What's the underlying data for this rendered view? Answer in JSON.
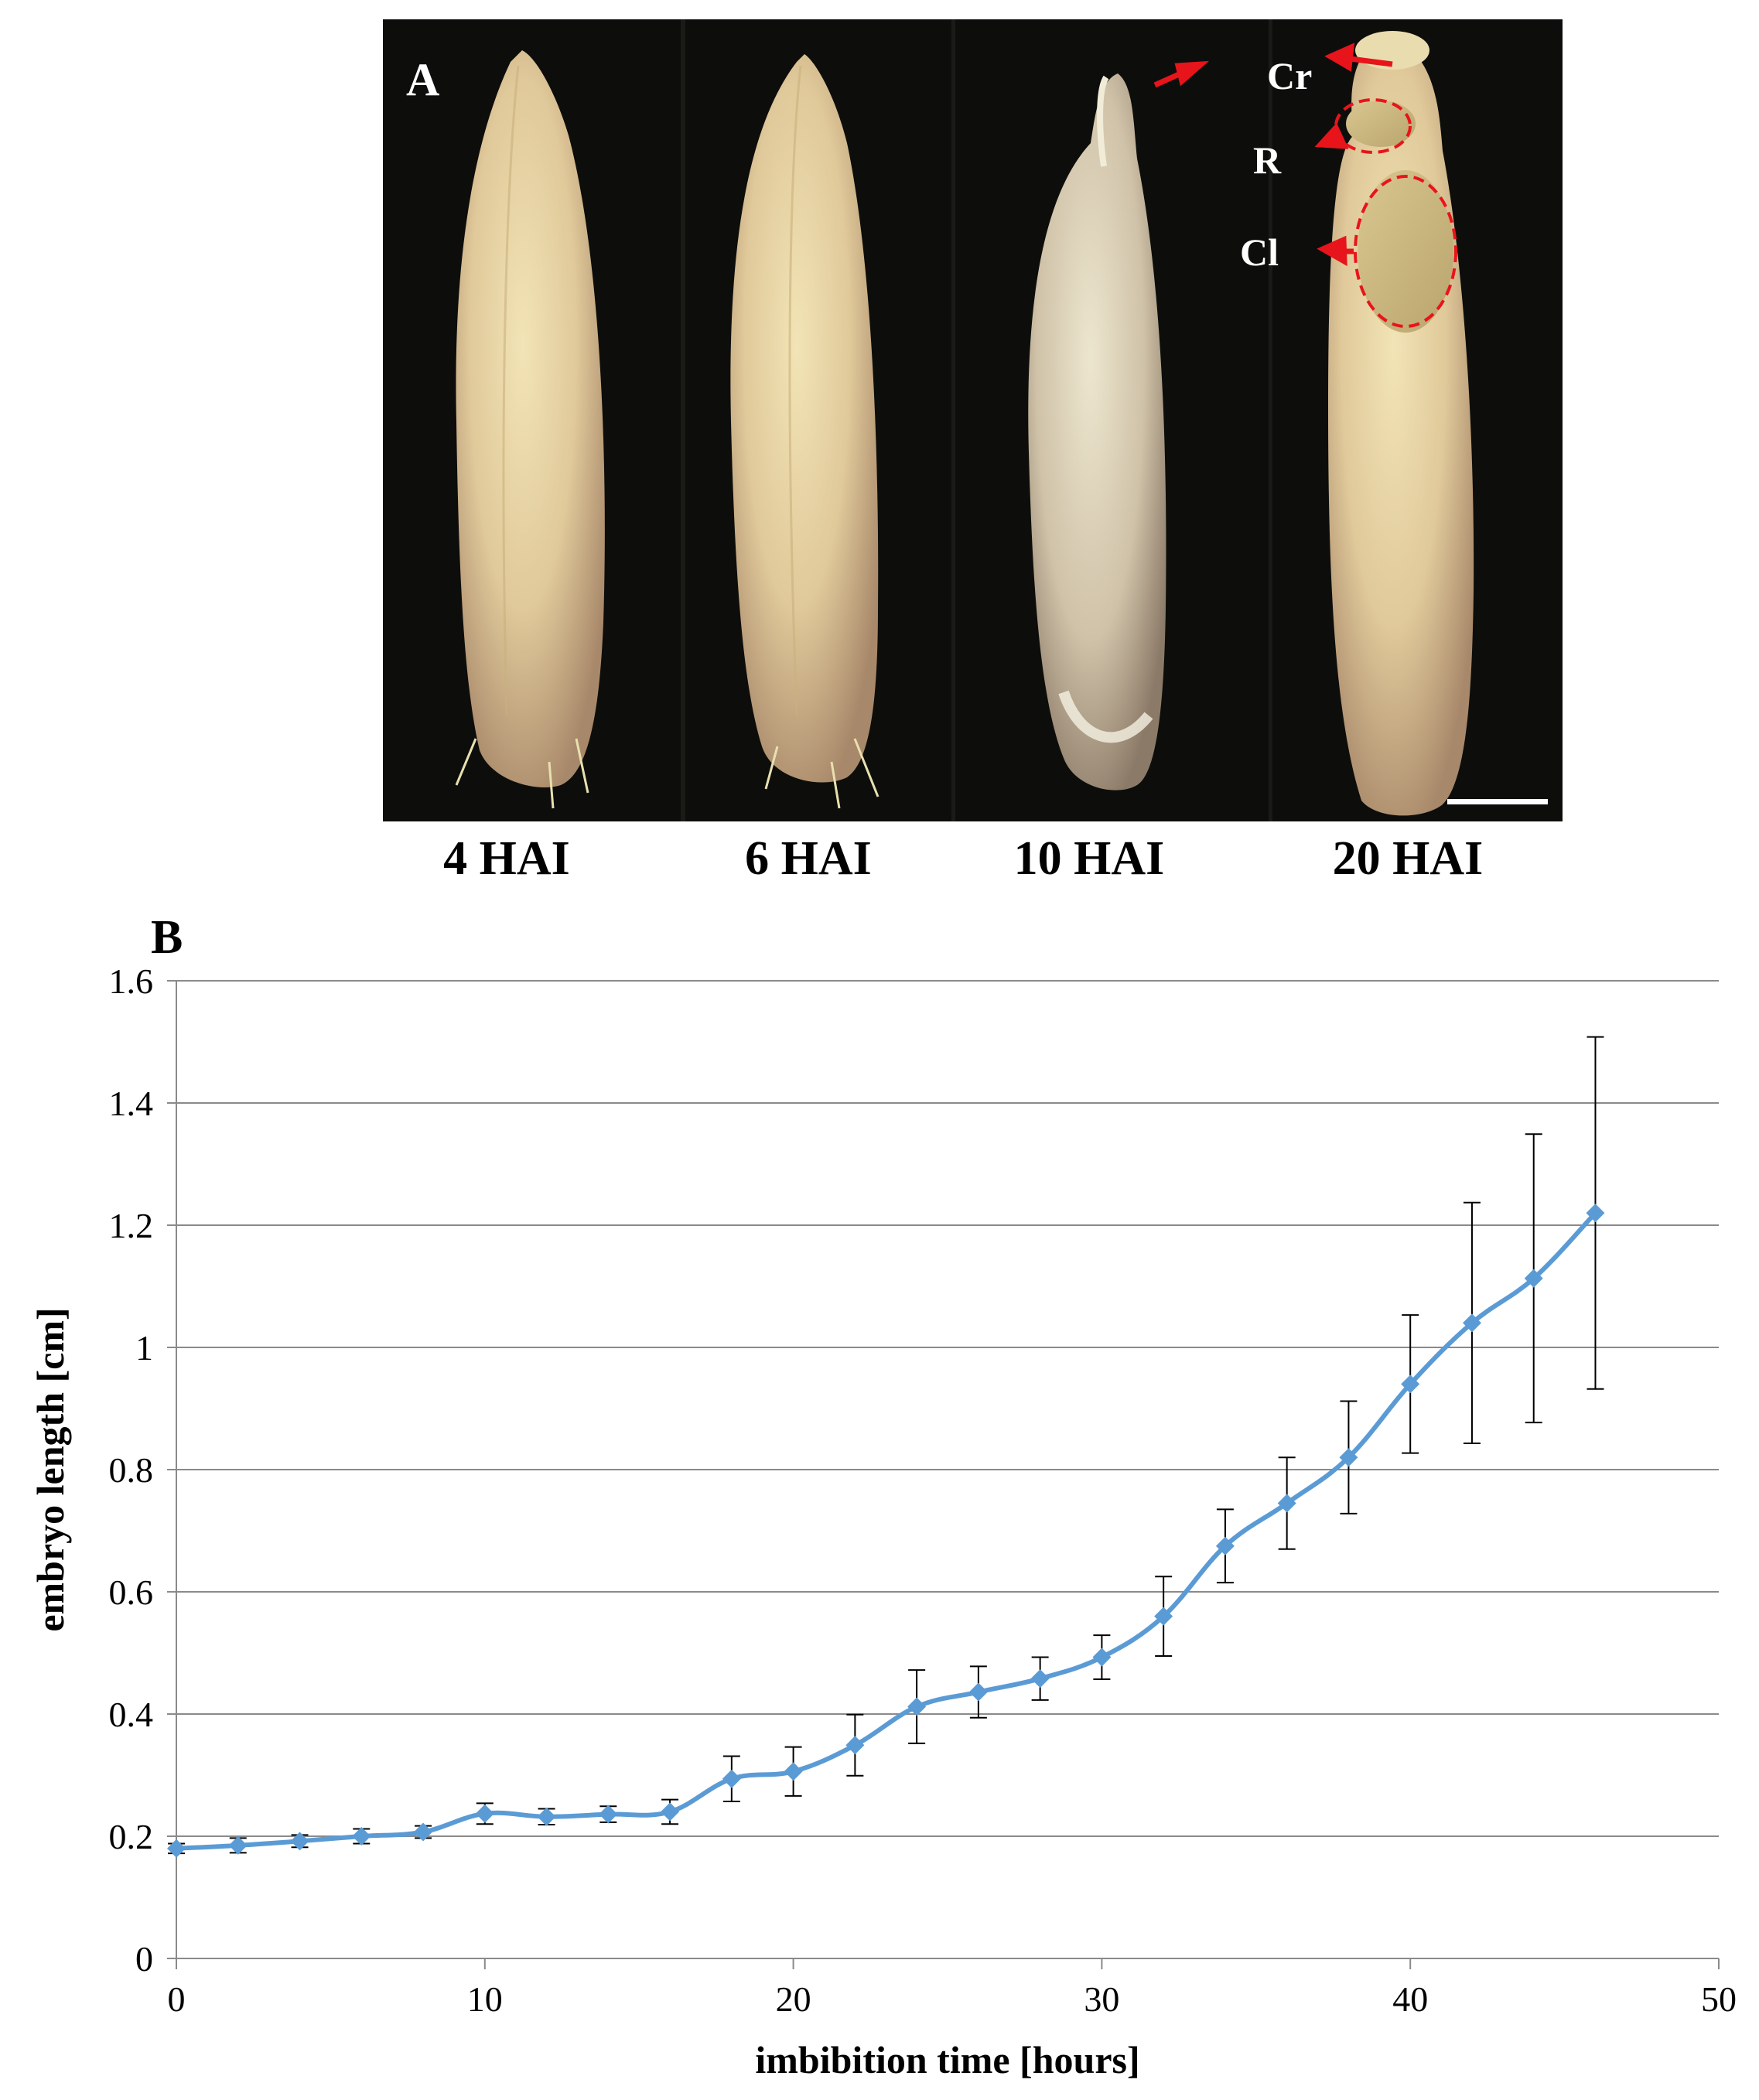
{
  "panel_a": {
    "label": "A",
    "annotations": [
      "Cr",
      "R",
      "Cl"
    ],
    "stage_labels": [
      "4 HAI",
      "6 HAI",
      "10 HAI",
      "20 HAI"
    ],
    "colors": {
      "background": "#0d0e0b",
      "seed": "#e6d29f",
      "annotation": "#e8141b"
    }
  },
  "chart_data": {
    "type": "line",
    "panel_label": "B",
    "xlabel": "imbibition  time [hours]",
    "ylabel": "embryo length [cm]",
    "xlim": [
      0,
      50
    ],
    "ylim": [
      0,
      1.6
    ],
    "xticks": [
      0,
      10,
      20,
      30,
      40,
      50
    ],
    "yticks": [
      0,
      0.2,
      0.4,
      0.6,
      0.8,
      1,
      1.2,
      1.4,
      1.6
    ],
    "ytick_labels": [
      "0",
      "0.2",
      "0.4",
      "0.6",
      "0.8",
      "1",
      "1.2",
      "1.4",
      "1.6"
    ],
    "grid": "horizontal",
    "marker": "diamond",
    "color": "#5b9bd5",
    "x": [
      0,
      2,
      4,
      6,
      8,
      10,
      12,
      14,
      16,
      18,
      20,
      22,
      24,
      26,
      28,
      30,
      32,
      34,
      36,
      38,
      40,
      42,
      44,
      46
    ],
    "y": [
      0.18,
      0.185,
      0.192,
      0.2,
      0.207,
      0.237,
      0.232,
      0.236,
      0.24,
      0.294,
      0.306,
      0.349,
      0.412,
      0.436,
      0.458,
      0.493,
      0.56,
      0.675,
      0.745,
      0.82,
      0.94,
      1.04,
      1.113,
      1.22
    ],
    "error": [
      0.008,
      0.012,
      0.01,
      0.012,
      0.01,
      0.017,
      0.013,
      0.013,
      0.02,
      0.037,
      0.04,
      0.05,
      0.06,
      0.042,
      0.035,
      0.036,
      0.065,
      0.06,
      0.075,
      0.092,
      0.113,
      0.197,
      0.236,
      0.288
    ]
  }
}
